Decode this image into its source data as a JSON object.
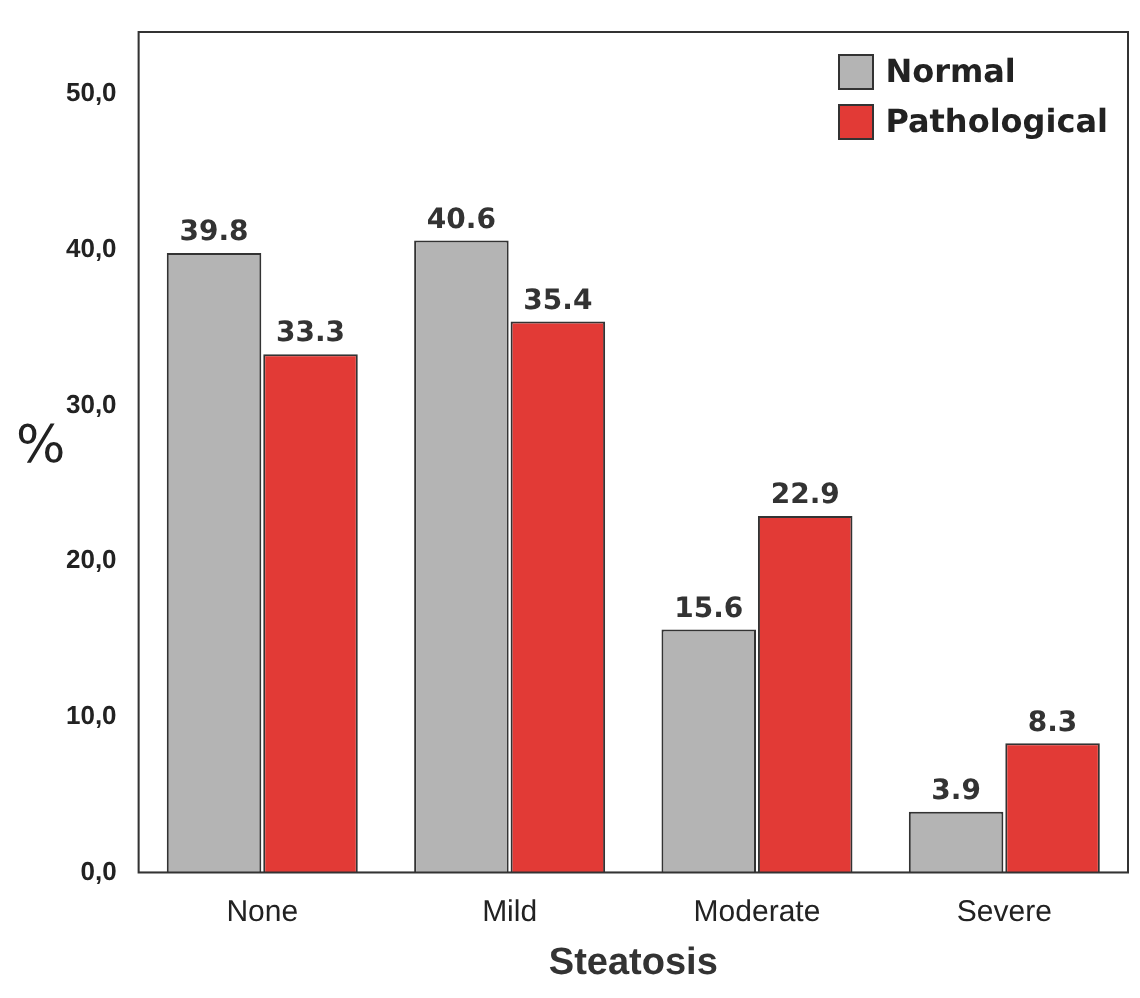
{
  "chart_data": {
    "type": "bar",
    "xlabel": "Steatosis",
    "ylabel": "%",
    "categories": [
      "None",
      "Mild",
      "Moderate",
      "Severe"
    ],
    "series": [
      {
        "name": "Normal",
        "color": "#b4b4b4",
        "values": [
          39.8,
          40.6,
          15.6,
          3.9
        ]
      },
      {
        "name": "Pathological",
        "color": "#e23a36",
        "values": [
          33.3,
          35.4,
          22.9,
          8.3
        ]
      }
    ],
    "ylim": [
      0,
      54
    ],
    "yticks": [
      {
        "value": 0,
        "label": "0,0"
      },
      {
        "value": 10,
        "label": "10,0"
      },
      {
        "value": 20,
        "label": "20,0"
      },
      {
        "value": 30,
        "label": "30,0"
      },
      {
        "value": 40,
        "label": "40,0"
      },
      {
        "value": 50,
        "label": "50,0"
      }
    ],
    "data_labels": true,
    "legend": "top right",
    "grid": false
  }
}
